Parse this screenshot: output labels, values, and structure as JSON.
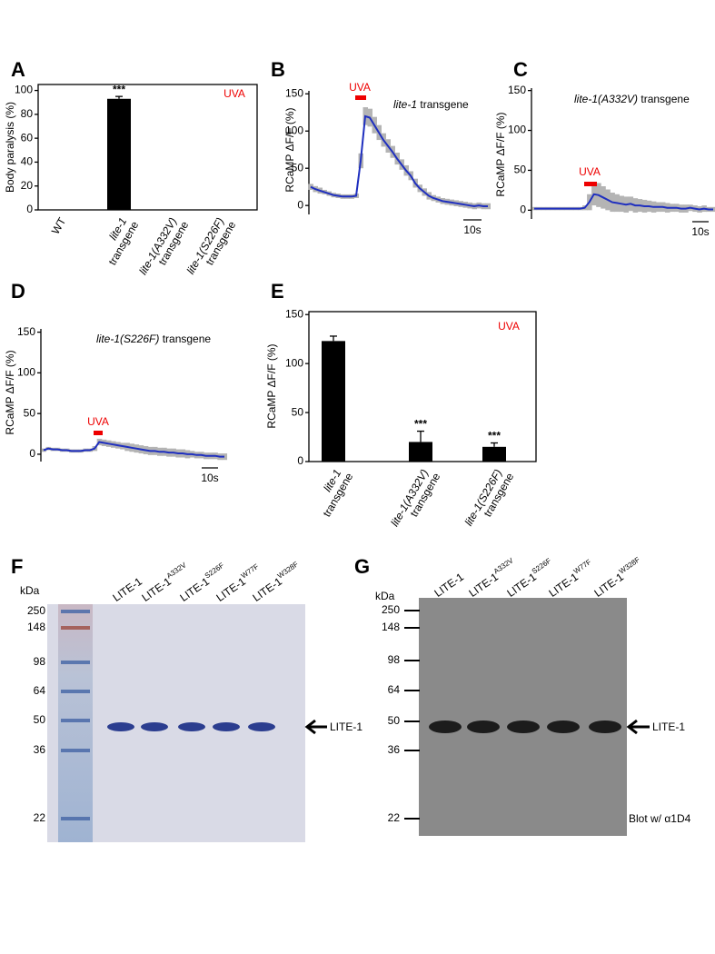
{
  "chart_data": [
    {
      "type": "bar",
      "panel": "A",
      "ylabel": "Body paralysis (%)",
      "categories": [
        [
          "WT"
        ],
        [
          "lite-1",
          "transgene"
        ],
        [
          "lite-1(A332V)",
          "transgene"
        ],
        [
          "lite-1(S226F)",
          "transgene"
        ]
      ],
      "values": [
        0,
        93,
        0,
        0
      ],
      "errors": [
        0,
        2,
        0,
        0
      ],
      "value_annotations": [
        null,
        "***",
        null,
        null
      ],
      "color": "#000000",
      "stimulus_label": "UVA",
      "ylim": [
        0,
        105
      ],
      "yticks": [
        0,
        20,
        40,
        60,
        80,
        100
      ]
    },
    {
      "type": "line",
      "panel": "B",
      "ylabel": "RCaMP ΔF/F (%)",
      "stimulus_label": "UVA",
      "trace_label": [
        "lite-1",
        "transgene"
      ],
      "scale_bar_label": "10s",
      "color": "#1f2fbf",
      "band_color": "#b4b4b4",
      "ylim": [
        -12,
        154
      ],
      "yticks": [
        0,
        50,
        100,
        150
      ],
      "values": [
        25,
        22,
        20,
        18,
        16,
        14,
        13,
        12,
        12,
        12,
        13,
        60,
        120,
        118,
        108,
        98,
        88,
        80,
        72,
        63,
        55,
        47,
        40,
        30,
        23,
        18,
        13,
        10,
        8,
        6,
        5,
        4,
        3,
        2,
        1,
        0,
        -1,
        0,
        -1,
        -1
      ],
      "errors": [
        4,
        4,
        4,
        3,
        3,
        3,
        3,
        3,
        3,
        3,
        3,
        10,
        12,
        12,
        11,
        10,
        9,
        9,
        8,
        8,
        7,
        7,
        6,
        6,
        5,
        5,
        5,
        4,
        4,
        4,
        4,
        4,
        4,
        4,
        4,
        4,
        4,
        4,
        4,
        4
      ]
    },
    {
      "type": "line",
      "panel": "C",
      "ylabel": "RCaMP ΔF/F (%)",
      "stimulus_label": "UVA",
      "trace_label": [
        "lite-1(A332V)",
        "transgene"
      ],
      "scale_bar_label": "10s",
      "color": "#1f2fbf",
      "band_color": "#b4b4b4",
      "ylim": [
        -11,
        153
      ],
      "yticks": [
        0,
        50,
        100,
        150
      ],
      "values": [
        2,
        2,
        2,
        2,
        2,
        2,
        2,
        2,
        2,
        2,
        2,
        3,
        10,
        20,
        19,
        16,
        13,
        10,
        9,
        8,
        7,
        8,
        6,
        6,
        5,
        5,
        4,
        4,
        4,
        3,
        3,
        3,
        2,
        2,
        3,
        2,
        1,
        2,
        1,
        1
      ],
      "errors": [
        2,
        2,
        2,
        2,
        2,
        2,
        2,
        2,
        2,
        2,
        2,
        3,
        10,
        14,
        15,
        14,
        13,
        12,
        11,
        10,
        10,
        9,
        9,
        8,
        8,
        7,
        7,
        6,
        6,
        6,
        5,
        5,
        5,
        5,
        4,
        4,
        4,
        4,
        3,
        3
      ]
    },
    {
      "type": "line",
      "panel": "D",
      "ylabel": "RCaMP ΔF/F (%)",
      "stimulus_label": "UVA",
      "trace_label": [
        "lite-1(S226F)",
        "transgene"
      ],
      "scale_bar_label": "10s",
      "color": "#1f2fbf",
      "band_color": "#b4b4b4",
      "ylim": [
        -9,
        154
      ],
      "yticks": [
        0,
        50,
        100,
        150
      ],
      "values": [
        5,
        7,
        6,
        6,
        5,
        5,
        4,
        4,
        4,
        5,
        5,
        7,
        15,
        14,
        13,
        12,
        11,
        10,
        9,
        8,
        7,
        6,
        5,
        4,
        4,
        3,
        3,
        2,
        2,
        1,
        1,
        0,
        0,
        -1,
        -1,
        -2,
        -2,
        -2,
        -3,
        -3
      ],
      "errors": [
        2,
        2,
        2,
        2,
        2,
        2,
        2,
        2,
        2,
        2,
        2,
        3,
        4,
        4,
        4,
        4,
        4,
        4,
        5,
        5,
        5,
        5,
        5,
        5,
        5,
        5,
        5,
        5,
        5,
        5,
        5,
        5,
        4,
        4,
        4,
        4,
        4,
        4,
        4,
        4
      ]
    },
    {
      "type": "bar",
      "panel": "E",
      "ylabel": "RCaMP ΔF/F (%)",
      "categories": [
        [
          "lite-1",
          "transgene"
        ],
        [
          "lite-1(A332V)",
          "transgene"
        ],
        [
          "lite-1(S226F)",
          "transgene"
        ]
      ],
      "values": [
        123,
        20,
        15
      ],
      "errors": [
        5,
        11,
        4
      ],
      "value_annotations": [
        null,
        "***",
        "***"
      ],
      "color": "#000000",
      "stimulus_label": "UVA",
      "ylim": [
        0,
        153
      ],
      "yticks": [
        0,
        50,
        100,
        150
      ]
    }
  ],
  "gels": [
    {
      "panel": "F",
      "unit": "kDa",
      "markers": [
        250,
        148,
        98,
        64,
        50,
        36,
        22
      ],
      "lanes": [
        {
          "name": "LITE-1"
        },
        {
          "name": "LITE-1",
          "superscript": "A332V"
        },
        {
          "name": "LITE-1",
          "superscript": "S226F"
        },
        {
          "name": "LITE-1",
          "superscript": "W77F"
        },
        {
          "name": "LITE-1",
          "superscript": "W328F"
        }
      ],
      "band_label": "LITE-1"
    },
    {
      "panel": "G",
      "unit": "kDa",
      "markers": [
        250,
        148,
        98,
        64,
        50,
        36,
        22
      ],
      "lanes": [
        {
          "name": "LITE-1"
        },
        {
          "name": "LITE-1",
          "superscript": "A332V"
        },
        {
          "name": "LITE-1",
          "superscript": "S226F"
        },
        {
          "name": "LITE-1",
          "superscript": "W77F"
        },
        {
          "name": "LITE-1",
          "superscript": "W328F"
        }
      ],
      "band_label": "LITE-1",
      "note": "Blot w/ α1D4"
    }
  ]
}
